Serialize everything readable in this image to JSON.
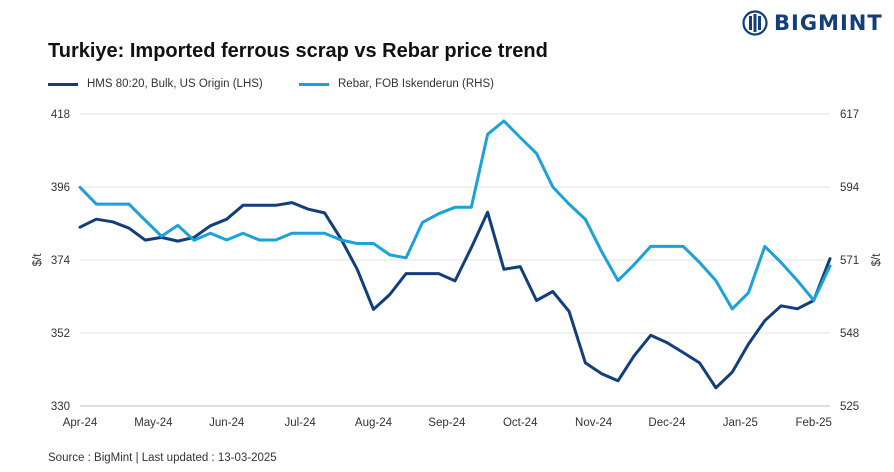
{
  "brand": {
    "name": "BIGMINT",
    "color": "#123e7c"
  },
  "title": "Turkiye: Imported ferrous scrap vs Rebar price trend",
  "source": "Source : BigMint | Last updated : 13-03-2025",
  "chart_data": {
    "type": "line",
    "title": "Turkiye: Imported ferrous scrap vs Rebar price trend",
    "grid": "horizontal",
    "legend_position": "top-left",
    "ylabel_left": "$/t",
    "ylabel_right": "$/t",
    "ylim_left": [
      330,
      418
    ],
    "ylim_right": [
      525,
      617
    ],
    "yticks_left": [
      "418",
      "396",
      "374",
      "352",
      "330"
    ],
    "yticks_right": [
      "617",
      "594",
      "571",
      "548",
      "525"
    ],
    "x_ticks": [
      {
        "label": "Apr-24",
        "i": 0
      },
      {
        "label": "May-24",
        "i": 4.5
      },
      {
        "label": "Jun-24",
        "i": 9
      },
      {
        "label": "Jul-24",
        "i": 13.5
      },
      {
        "label": "Aug-24",
        "i": 18
      },
      {
        "label": "Sep-24",
        "i": 22.5
      },
      {
        "label": "Oct-24",
        "i": 27
      },
      {
        "label": "Nov-24",
        "i": 31.5
      },
      {
        "label": "Dec-24",
        "i": 36
      },
      {
        "label": "Jan-25",
        "i": 40.5
      },
      {
        "label": "Feb-25",
        "i": 45
      }
    ],
    "series": [
      {
        "name": "HMS 80:20, Bulk, US Origin (LHS)",
        "axis": "left",
        "color": "#123e7c",
        "values": [
          383.9,
          386.3,
          385.5,
          383.6,
          380.0,
          380.8,
          379.7,
          380.8,
          384.3,
          386.3,
          390.5,
          390.5,
          390.5,
          391.3,
          389.3,
          388.2,
          380.4,
          371.2,
          359.1,
          363.6,
          369.9,
          369.9,
          369.9,
          367.7,
          377.7,
          388.4,
          371.2,
          372.0,
          361.8,
          364.5,
          358.5,
          343.0,
          339.7,
          337.6,
          345.2,
          351.3,
          349.1,
          346.1,
          343.0,
          335.5,
          340.2,
          348.7,
          355.7,
          360.2,
          359.3,
          361.8,
          374.4
        ]
      },
      {
        "name": "Rebar, FOB Iskenderun (RHS)",
        "axis": "right",
        "color": "#1ba1dc",
        "values": [
          593.9,
          588.6,
          588.6,
          588.6,
          583.5,
          578.5,
          581.9,
          577.2,
          579.4,
          577.3,
          579.4,
          577.3,
          577.3,
          579.4,
          579.4,
          579.4,
          577.3,
          576.2,
          576.2,
          572.6,
          571.7,
          582.8,
          585.6,
          587.6,
          587.6,
          610.6,
          614.8,
          609.6,
          604.6,
          594.0,
          588.6,
          583.8,
          573.6,
          564.5,
          569.6,
          575.3,
          575.3,
          575.3,
          570.2,
          564.5,
          555.6,
          560.7,
          575.3,
          570.2,
          564.5,
          558.3,
          569.1
        ]
      }
    ]
  }
}
